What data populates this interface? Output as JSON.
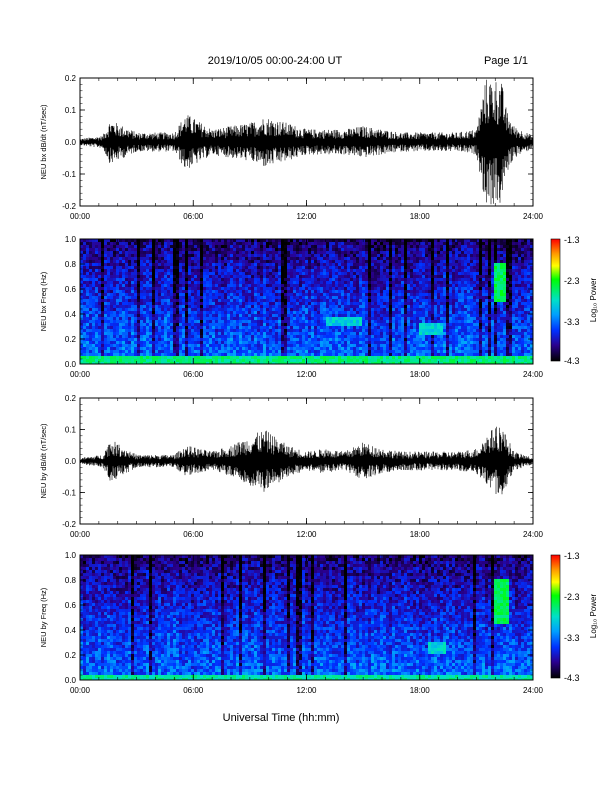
{
  "header": {
    "title": "2019/10/05  00:00-24:00 UT",
    "page": "Page 1/1"
  },
  "footer": {
    "xlabel": "Universal Time (hh:mm)"
  },
  "colorbar": {
    "label": "Log₁₀ Power",
    "ticks": [
      "-1.3",
      "-2.3",
      "-3.3",
      "-4.3"
    ],
    "colors": [
      "#ff0000",
      "#ffaa00",
      "#ffff00",
      "#00ff00",
      "#00e0c0",
      "#00aaff",
      "#0044ff",
      "#1010b0",
      "#200060",
      "#000000"
    ]
  },
  "chart_data": [
    {
      "type": "line",
      "ylabel": "NEU bx dB/dt (nT/sec)",
      "xticks": [
        "00:00",
        "06:00",
        "12:00",
        "18:00",
        "24:00"
      ],
      "yticks": [
        "0.2",
        "0.1",
        "0.0",
        "-0.1",
        "-0.2"
      ],
      "xlim": [
        0,
        24
      ],
      "ylim": [
        -0.2,
        0.2
      ],
      "series": [
        {
          "x": [
            0.0,
            1.2,
            1.6,
            3.0,
            5.0,
            5.6,
            7.0,
            8.0,
            9.0,
            9.8,
            11.0,
            12.0,
            13.0,
            14.0,
            15.0,
            16.0,
            17.0,
            18.0,
            19.0,
            20.0,
            21.0,
            21.5,
            21.8,
            22.3,
            22.6,
            23.0,
            24.0
          ],
          "envelope": [
            0.01,
            0.02,
            0.07,
            0.03,
            0.03,
            0.09,
            0.04,
            0.05,
            0.06,
            0.08,
            0.06,
            0.04,
            0.04,
            0.04,
            0.05,
            0.04,
            0.03,
            0.03,
            0.03,
            0.03,
            0.04,
            0.2,
            0.2,
            0.2,
            0.1,
            0.05,
            0.02
          ]
        }
      ]
    },
    {
      "type": "heatmap",
      "ylabel": "NEU bx Freq (Hz)",
      "xticks": [
        "00:00",
        "06:00",
        "12:00",
        "18:00",
        "24:00"
      ],
      "yticks": [
        "1.0",
        "0.8",
        "0.6",
        "0.4",
        "0.2",
        "0.0"
      ],
      "xlim": [
        0,
        24
      ],
      "ylim": [
        0,
        1.0
      ],
      "zlim": [
        -4.3,
        -1.3
      ],
      "features": [
        {
          "t": [
            13.0,
            15.0
          ],
          "f": [
            0.3,
            0.38
          ],
          "level": -2.9
        },
        {
          "t": [
            18.0,
            19.2
          ],
          "f": [
            0.25,
            0.33
          ],
          "level": -2.9
        },
        {
          "t": [
            22.0,
            22.6
          ],
          "f": [
            0.5,
            0.8
          ],
          "level": -2.5
        },
        {
          "t": [
            0.0,
            24.0
          ],
          "f": [
            0.0,
            0.06
          ],
          "level": -2.6
        }
      ]
    },
    {
      "type": "line",
      "ylabel": "NEU by dB/dt (nT/sec)",
      "xticks": [
        "00:00",
        "06:00",
        "12:00",
        "18:00",
        "24:00"
      ],
      "yticks": [
        "0.2",
        "0.1",
        "0.0",
        "-0.1",
        "-0.2"
      ],
      "xlim": [
        0,
        24
      ],
      "ylim": [
        -0.2,
        0.2
      ],
      "series": [
        {
          "x": [
            0.0,
            1.2,
            1.6,
            3.0,
            5.0,
            5.6,
            7.0,
            8.0,
            9.0,
            9.8,
            11.0,
            12.0,
            13.0,
            14.0,
            15.0,
            16.0,
            17.0,
            18.0,
            19.0,
            20.0,
            21.0,
            21.5,
            21.8,
            22.3,
            22.6,
            23.0,
            24.0
          ],
          "envelope": [
            0.01,
            0.02,
            0.07,
            0.02,
            0.02,
            0.05,
            0.03,
            0.05,
            0.08,
            0.1,
            0.05,
            0.03,
            0.04,
            0.03,
            0.06,
            0.04,
            0.03,
            0.03,
            0.03,
            0.03,
            0.04,
            0.08,
            0.1,
            0.12,
            0.08,
            0.03,
            0.01
          ]
        }
      ]
    },
    {
      "type": "heatmap",
      "ylabel": "NEU by Freq (Hz)",
      "xticks": [
        "00:00",
        "06:00",
        "12:00",
        "18:00",
        "24:00"
      ],
      "yticks": [
        "1.0",
        "0.8",
        "0.6",
        "0.4",
        "0.2",
        "0.0"
      ],
      "xlim": [
        0,
        24
      ],
      "ylim": [
        0,
        1.0
      ],
      "zlim": [
        -4.3,
        -1.3
      ],
      "features": [
        {
          "t": [
            18.4,
            19.4
          ],
          "f": [
            0.22,
            0.32
          ],
          "level": -2.9
        },
        {
          "t": [
            22.0,
            22.7
          ],
          "f": [
            0.45,
            0.8
          ],
          "level": -2.5
        },
        {
          "t": [
            0.0,
            24.0
          ],
          "f": [
            0.0,
            0.05
          ],
          "level": -2.7
        }
      ]
    }
  ]
}
